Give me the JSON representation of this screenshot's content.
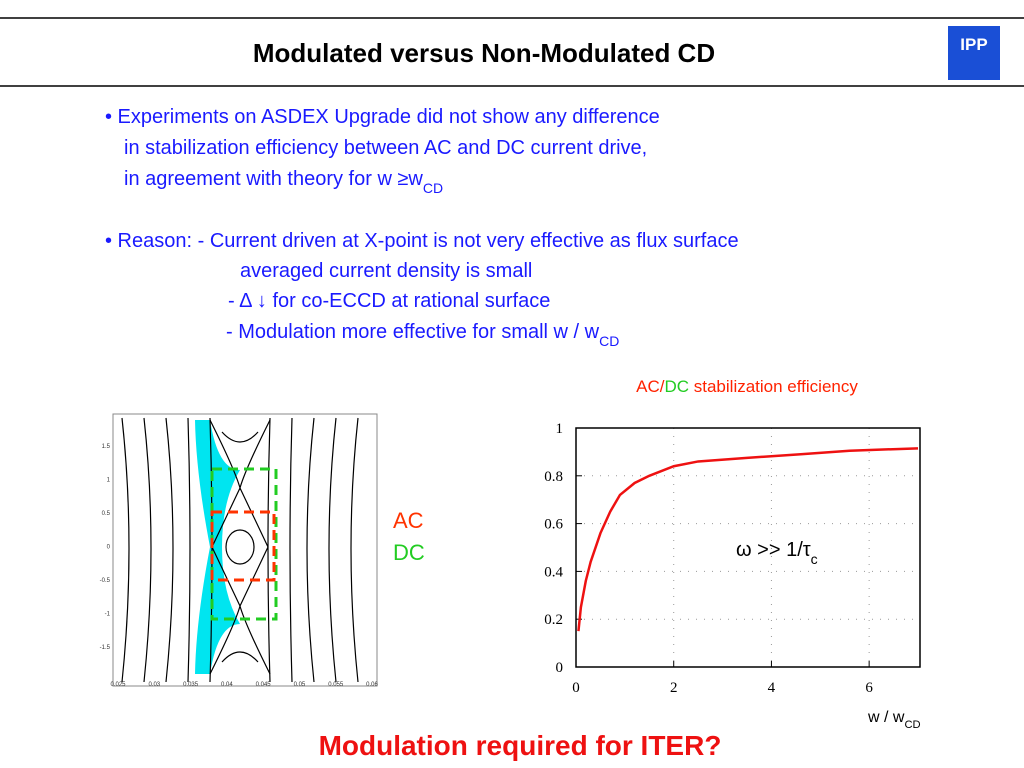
{
  "header": {
    "title": "Modulated versus Non-Modulated CD",
    "logo": "IPP"
  },
  "bullets": [
    {
      "text": "• Experiments on ASDEX Upgrade did not show any difference"
    },
    {
      "text": "in stabilization efficiency between AC and DC current drive,"
    },
    {
      "text": "in agreement with theory for w ≥w",
      "sub": "CD"
    },
    {
      "text": "• Reason: - Current driven at X-point is not very effective as flux surface"
    },
    {
      "text": "averaged current density is small"
    },
    {
      "text": "- Δ ↓ for co-ECCD at rational surface"
    },
    {
      "text": "- Modulation more effective for small w / w",
      "sub": "CD"
    }
  ],
  "contour_figure": {
    "xtick_labels": [
      0.025,
      0.03,
      0.035,
      0.04,
      0.045,
      0.05,
      0.055,
      0.06
    ],
    "ytick_labels": [
      1.5,
      1,
      0.5,
      0,
      -0.5,
      -1,
      -1.5
    ],
    "legend": [
      {
        "name": "AC",
        "color": "#ff3300"
      },
      {
        "name": "DC",
        "color": "#22cc22"
      }
    ]
  },
  "chart_data": {
    "type": "line",
    "title_parts": [
      {
        "text": "AC/",
        "color": "#ff2200"
      },
      {
        "text": "DC",
        "color": "#22cc22"
      },
      {
        "text": " stabilization efficiency",
        "color": "#ff2200"
      }
    ],
    "annotation": {
      "text": "ω >> 1/τ",
      "sub": "c"
    },
    "x_label": {
      "text": "w / w",
      "sub": "CD"
    },
    "x": [
      0.05,
      0.1,
      0.2,
      0.3,
      0.5,
      0.7,
      0.9,
      1.2,
      1.5,
      2,
      2.5,
      3.5,
      4.6,
      5.6,
      7
    ],
    "series": [
      {
        "name": "AC/DC",
        "color": "#ee1111",
        "values": [
          0.15,
          0.25,
          0.36,
          0.44,
          0.56,
          0.65,
          0.72,
          0.77,
          0.8,
          0.84,
          0.86,
          0.875,
          0.89,
          0.905,
          0.915
        ]
      }
    ],
    "xlim": [
      0,
      7
    ],
    "ylim": [
      0,
      1
    ],
    "xticks": [
      0,
      2,
      4,
      6
    ],
    "yticks": [
      0,
      0.2,
      0.4,
      0.6,
      0.8,
      1
    ],
    "grid": true
  },
  "conclusion": "Modulation required for ITER?"
}
